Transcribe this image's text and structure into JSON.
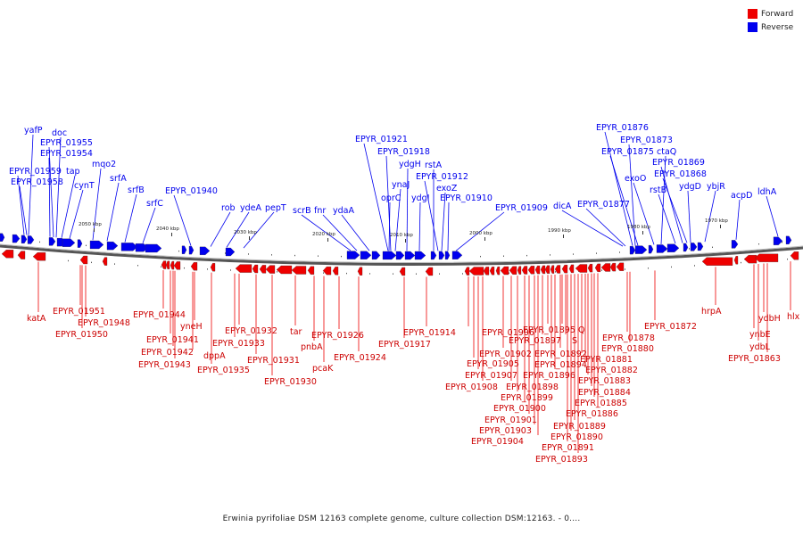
{
  "legend": [
    {
      "label": "Forward",
      "color": "#ee0000"
    },
    {
      "label": "Reverse",
      "color": "#0000ee"
    }
  ],
  "caption": "Erwinia pyrifoliae DSM 12163 complete genome, culture collection DSM:12163. - 0....",
  "scale_labels": [
    "2050 kbp",
    "2040 kbp",
    "2030 kbp",
    "2020 kbp",
    "2010 kbp",
    "2000 kbp",
    "1990 kbp",
    "1980 kbp",
    "1970 kbp"
  ],
  "reverse_genes": [
    "yafP",
    "doc",
    "EPYR_01955",
    "EPYR_01954",
    "EPYR_01959",
    "EPYR_01958",
    "tap",
    "cynT",
    "mqo2",
    "srfA",
    "srfB",
    "srfC",
    "EPYR_01940",
    "rob",
    "ydeA",
    "pepT",
    "scrB",
    "fnr",
    "ydaA",
    "EPYR_01921",
    "EPYR_01918",
    "ynaJ",
    "ydgH",
    "rstA",
    "EPYR_01912",
    "oprC",
    "ydgI",
    "exoZ",
    "EPYR_01910",
    "EPYR_01909",
    "dicA",
    "EPYR_01877",
    "EPYR_01876",
    "EPYR_01873",
    "EPYR_01875",
    "ctaQ",
    "EPYR_01869",
    "EPYR_01868",
    "exoO",
    "rstB",
    "ydgD",
    "ybjR",
    "acpD",
    "ldhA"
  ],
  "forward_genes": [
    "katA",
    "EPYR_01951",
    "EPYR_01948",
    "EPYR_01950",
    "EPYR_01944",
    "yneH",
    "EPYR_01941",
    "EPYR_01942",
    "EPYR_01943",
    "dppA",
    "EPYR_01935",
    "EPYR_01932",
    "EPYR_01933",
    "EPYR_01931",
    "EPYR_01930",
    "tar",
    "pnbA",
    "pcaK",
    "EPYR_01926",
    "EPYR_01924",
    "EPYR_01917",
    "EPYR_01914",
    "EPYR_01906",
    "EPYR_01905",
    "EPYR_01907",
    "EPYR_01908",
    "EPYR_01902",
    "EPYR_01898",
    "EPYR_01899",
    "EPYR_01900",
    "EPYR_01901",
    "EPYR_01903",
    "EPYR_01904",
    "EPYR_01897",
    "EPYR_01895",
    "EPYR_01894",
    "EPYR_01896",
    "EPYR_01892",
    "Q",
    "S",
    "EPYR_01891",
    "EPYR_01890",
    "EPYR_01889",
    "EPYR_01893",
    "EPYR_01881",
    "EPYR_01882",
    "EPYR_01883",
    "EPYR_01884",
    "EPYR_01885",
    "EPYR_01886",
    "EPYR_01878",
    "EPYR_01880",
    "EPYR_01872",
    "hrpA",
    "ynbE",
    "ydbH",
    "ydbL",
    "EPYR_01863",
    "hlx"
  ]
}
